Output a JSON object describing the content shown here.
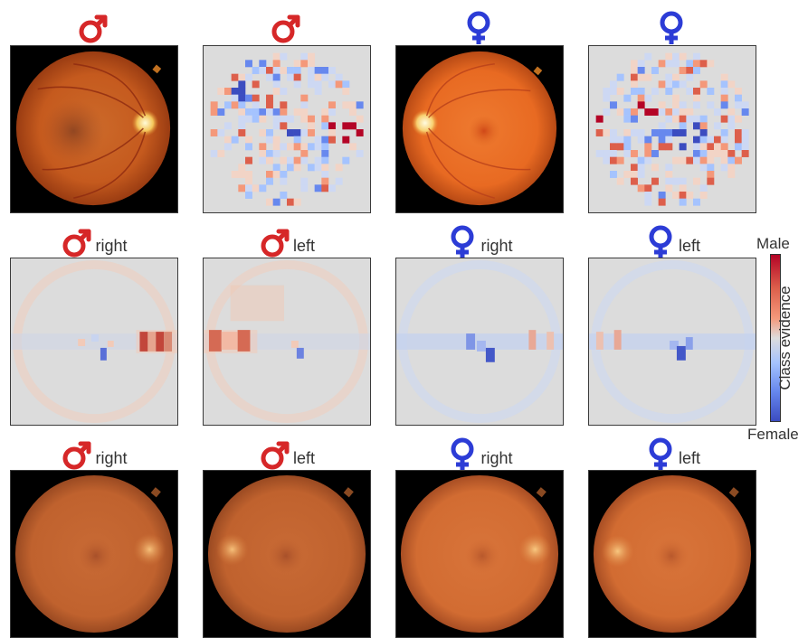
{
  "colors": {
    "male": "#d62728",
    "female": "#2c3cd6",
    "heatmap_bg": "#dcdcdc"
  },
  "icons": {
    "male": "male-symbol-icon",
    "female": "female-symbol-icon"
  },
  "rows": [
    {
      "row": "top",
      "panels": [
        {
          "sex": "male",
          "label": "",
          "kind": "fundus-photo"
        },
        {
          "sex": "male",
          "label": "",
          "kind": "evidence-map"
        },
        {
          "sex": "female",
          "label": "",
          "kind": "fundus-photo"
        },
        {
          "sex": "female",
          "label": "",
          "kind": "evidence-map"
        }
      ]
    },
    {
      "row": "middle",
      "panels": [
        {
          "sex": "male",
          "label": "right",
          "kind": "average-evidence-map"
        },
        {
          "sex": "male",
          "label": "left",
          "kind": "average-evidence-map"
        },
        {
          "sex": "female",
          "label": "right",
          "kind": "average-evidence-map"
        },
        {
          "sex": "female",
          "label": "left",
          "kind": "average-evidence-map"
        }
      ]
    },
    {
      "row": "bottom",
      "panels": [
        {
          "sex": "male",
          "label": "right",
          "kind": "average-fundus"
        },
        {
          "sex": "male",
          "label": "left",
          "kind": "average-fundus"
        },
        {
          "sex": "female",
          "label": "right",
          "kind": "average-fundus"
        },
        {
          "sex": "female",
          "label": "left",
          "kind": "average-fundus"
        }
      ]
    }
  ],
  "colorbar": {
    "top_label": "Male",
    "bottom_label": "Female",
    "title": "Class evidence"
  }
}
